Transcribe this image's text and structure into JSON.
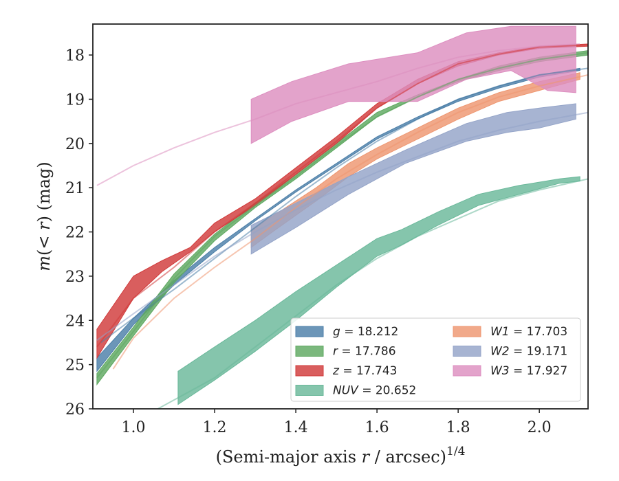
{
  "chart_data": {
    "type": "area",
    "title": "",
    "xlabel": "(Semi-major axis r / arcsec)",
    "xlabel_prefix": "(Semi-major axis ",
    "xlabel_r": "r",
    "xlabel_suffix": " / arcsec)",
    "xlabel_exponent": "1/4",
    "ylabel": "m(< r) (mag)",
    "ylabel_m": "m",
    "ylabel_mid": "(< ",
    "ylabel_r": "r",
    "ylabel_end": ") (mag)",
    "xlim": [
      0.9,
      2.12
    ],
    "ylim": [
      26.0,
      17.3
    ],
    "y_inverted": true,
    "xticks": [
      1.0,
      1.2,
      1.4,
      1.6,
      1.8,
      2.0
    ],
    "xtick_labels": [
      "1.0",
      "1.2",
      "1.4",
      "1.6",
      "1.8",
      "2.0"
    ],
    "yticks": [
      18,
      19,
      20,
      21,
      22,
      23,
      24,
      25,
      26
    ],
    "ytick_labels": [
      "18",
      "19",
      "20",
      "21",
      "22",
      "23",
      "24",
      "25",
      "26"
    ],
    "grid": false,
    "legend_position": "lower-right",
    "series": [
      {
        "band": "g",
        "value_text": "= 18.212",
        "color": "#4c7fa8",
        "band_x": [
          0.91,
          1.0,
          1.1,
          1.2,
          1.3,
          1.4,
          1.5,
          1.6,
          1.7,
          1.8,
          1.9,
          2.0,
          2.1
        ],
        "band_low": [
          25.15,
          24.1,
          23.2,
          22.45,
          21.75,
          21.1,
          20.5,
          19.9,
          19.45,
          19.05,
          18.75,
          18.5,
          18.35
        ],
        "band_high": [
          24.85,
          23.95,
          23.1,
          22.35,
          21.7,
          21.05,
          20.45,
          19.85,
          19.4,
          19.0,
          18.7,
          18.45,
          18.3
        ],
        "model_x": [
          0.92,
          1.0,
          1.1,
          1.2,
          1.3,
          1.4,
          1.5,
          1.6,
          1.7,
          1.8,
          1.9,
          2.0,
          2.12
        ],
        "model_y": [
          24.5,
          23.95,
          23.3,
          22.6,
          21.9,
          21.2,
          20.55,
          19.95,
          19.45,
          19.0,
          18.7,
          18.45,
          18.3
        ],
        "model_clip_x": [
          0.9,
          2.12
        ]
      },
      {
        "band": "r",
        "value_text": "= 17.786",
        "color": "#5ea860",
        "band_x": [
          0.91,
          1.0,
          1.1,
          1.2,
          1.3,
          1.4,
          1.5,
          1.6,
          1.7,
          1.8,
          1.9,
          2.0,
          2.12
        ],
        "band_low": [
          25.45,
          24.35,
          23.15,
          22.2,
          21.45,
          20.8,
          20.1,
          19.4,
          18.95,
          18.6,
          18.35,
          18.15,
          18.0
        ],
        "band_high": [
          25.2,
          24.15,
          22.95,
          22.05,
          21.35,
          20.7,
          20.0,
          19.3,
          18.9,
          18.55,
          18.25,
          18.05,
          17.9
        ],
        "model_x": [
          0.91,
          1.0,
          1.1,
          1.2,
          1.3,
          1.4,
          1.5,
          1.6,
          1.7,
          1.8,
          1.9,
          2.0,
          2.12
        ],
        "model_y": [
          25.3,
          24.25,
          23.05,
          22.1,
          21.4,
          20.75,
          20.05,
          19.4,
          18.95,
          18.55,
          18.3,
          18.1,
          17.95
        ],
        "model_clip_x": [
          0.9,
          2.12
        ]
      },
      {
        "band": "z",
        "value_text": "= 17.743",
        "color": "#d13b3b",
        "band_x": [
          0.91,
          1.0,
          1.07,
          1.14,
          1.2,
          1.3,
          1.4,
          1.5,
          1.6,
          1.7,
          1.8,
          1.9,
          2.0,
          2.12
        ],
        "band_low": [
          24.85,
          23.5,
          22.9,
          22.45,
          22.0,
          21.4,
          20.7,
          20.0,
          19.2,
          18.65,
          18.25,
          18.0,
          17.85,
          17.8
        ],
        "band_high": [
          24.2,
          23.0,
          22.65,
          22.35,
          21.8,
          21.25,
          20.55,
          19.85,
          19.1,
          18.55,
          18.15,
          17.95,
          17.8,
          17.75
        ],
        "model_x": [
          0.91,
          1.0,
          1.1,
          1.2,
          1.3,
          1.4,
          1.5,
          1.6,
          1.7,
          1.8,
          1.9,
          2.0,
          2.12
        ],
        "model_y": [
          24.6,
          23.5,
          22.8,
          22.0,
          21.35,
          20.65,
          19.95,
          19.2,
          18.65,
          18.2,
          17.98,
          17.82,
          17.77
        ],
        "model_clip_x": [
          0.9,
          2.12
        ]
      },
      {
        "band": "NUV",
        "value_text": "= 20.652",
        "color": "#6ab89a",
        "band_x": [
          1.11,
          1.2,
          1.3,
          1.4,
          1.5,
          1.6,
          1.66,
          1.75,
          1.85,
          1.95,
          2.05,
          2.1
        ],
        "band_low": [
          25.9,
          25.35,
          24.7,
          24.0,
          23.25,
          22.55,
          22.3,
          21.85,
          21.4,
          21.15,
          20.9,
          20.85
        ],
        "band_high": [
          25.15,
          24.6,
          24.0,
          23.35,
          22.75,
          22.15,
          21.95,
          21.55,
          21.15,
          20.95,
          20.8,
          20.75
        ],
        "model_x": [
          1.06,
          1.2,
          1.3,
          1.4,
          1.5,
          1.6,
          1.7,
          1.8,
          1.9,
          2.0,
          2.12
        ],
        "model_y": [
          26.0,
          25.3,
          24.6,
          23.9,
          23.2,
          22.6,
          22.1,
          21.7,
          21.3,
          21.05,
          20.8
        ],
        "model_clip_x": [
          1.06,
          2.12
        ]
      },
      {
        "band": "W1",
        "value_text": "= 17.703",
        "color": "#ee9670",
        "band_x": [
          1.29,
          1.35,
          1.45,
          1.53,
          1.6,
          1.7,
          1.8,
          1.9,
          2.0,
          2.1
        ],
        "band_low": [
          22.35,
          21.95,
          21.3,
          20.75,
          20.35,
          19.9,
          19.45,
          19.05,
          18.8,
          18.55
        ],
        "band_high": [
          21.95,
          21.6,
          21.0,
          20.45,
          20.1,
          19.65,
          19.2,
          18.85,
          18.6,
          18.4
        ],
        "model_x": [
          0.95,
          1.0,
          1.1,
          1.2,
          1.3,
          1.4,
          1.5,
          1.6,
          1.7,
          1.8,
          1.9,
          2.0,
          2.12
        ],
        "model_y": [
          25.1,
          24.4,
          23.5,
          22.8,
          22.15,
          21.45,
          20.8,
          20.25,
          19.75,
          19.3,
          18.95,
          18.7,
          18.45
        ],
        "model_clip_x": [
          0.95,
          2.12
        ]
      },
      {
        "band": "W2",
        "value_text": "= 19.171",
        "color": "#94a4c8",
        "band_x": [
          1.29,
          1.4,
          1.53,
          1.67,
          1.82,
          1.92,
          2.0,
          2.09
        ],
        "band_low": [
          22.5,
          21.9,
          21.15,
          20.45,
          19.95,
          19.75,
          19.65,
          19.45
        ],
        "band_high": [
          21.85,
          21.35,
          20.75,
          20.15,
          19.55,
          19.3,
          19.2,
          19.1
        ],
        "model_x": [
          0.91,
          1.0,
          1.1,
          1.2,
          1.3,
          1.4,
          1.5,
          1.6,
          1.7,
          1.8,
          1.9,
          2.0,
          2.12
        ],
        "model_y": [
          24.45,
          23.85,
          23.2,
          22.55,
          22.0,
          21.5,
          21.05,
          20.65,
          20.3,
          19.95,
          19.7,
          19.5,
          19.3
        ],
        "model_clip_x": [
          0.9,
          2.12
        ]
      },
      {
        "band": "W3",
        "value_text": "= 17.927",
        "color": "#dd8fc0",
        "band_x": [
          1.29,
          1.39,
          1.53,
          1.7,
          1.82,
          1.93,
          2.02,
          2.09
        ],
        "band_low": [
          20.0,
          19.5,
          19.05,
          19.05,
          18.55,
          18.35,
          18.8,
          18.85
        ],
        "band_high": [
          19.0,
          18.6,
          18.2,
          17.95,
          17.5,
          17.35,
          17.35,
          17.35
        ],
        "model_x": [
          0.91,
          1.0,
          1.1,
          1.2,
          1.3,
          1.4,
          1.5,
          1.6,
          1.7,
          1.8,
          1.9,
          2.0,
          2.1
        ],
        "model_y": [
          20.95,
          20.5,
          20.1,
          19.75,
          19.45,
          19.1,
          18.85,
          18.6,
          18.3,
          18.05,
          17.9,
          17.8,
          17.75
        ],
        "model_clip_x": [
          0.9,
          2.12
        ]
      }
    ],
    "legend": {
      "columns": [
        [
          "g",
          "r",
          "z",
          "NUV"
        ],
        [
          "W1",
          "W2",
          "W3"
        ]
      ]
    }
  }
}
